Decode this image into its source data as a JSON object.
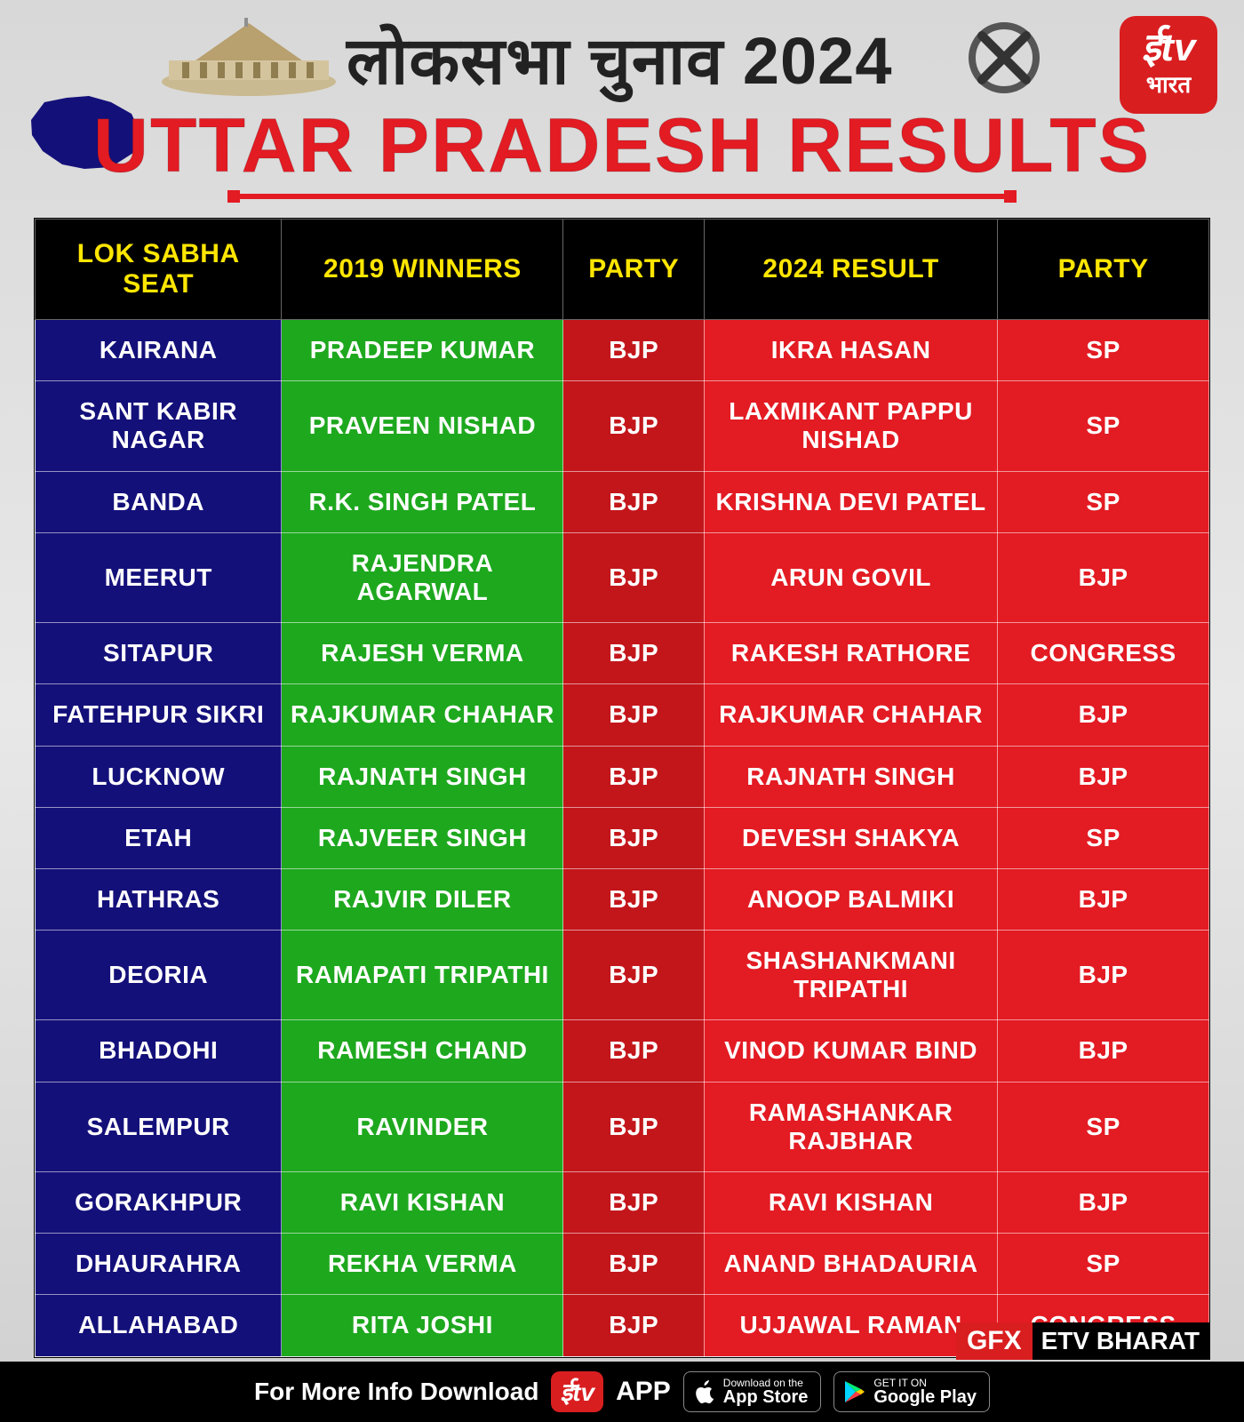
{
  "header": {
    "hindi_title": "लोकसभा चुनाव 2024",
    "main_title": "UTTAR PRADESH RESULTS",
    "logo_top": "ईtv",
    "logo_bottom": "भारत"
  },
  "colors": {
    "header_bg": "#000000",
    "header_fg": "#ffe600",
    "seat_bg": "#14107a",
    "winner2019_bg": "#1ea81e",
    "party2019_bg": "#c3161b",
    "result2024_bg": "#e31b23",
    "party2024_bg": "#e31b23",
    "title_fg": "#e31b23",
    "cell_fg": "#ffffff",
    "page_bg": "#e0e0e0",
    "map_fill": "#14107a"
  },
  "table": {
    "columns": [
      "LOK SABHA SEAT",
      "2019 WINNERS",
      "PARTY",
      "2024 RESULT",
      "PARTY"
    ],
    "col_widths_pct": [
      21,
      24,
      12,
      25,
      18
    ],
    "header_fontsize": 30,
    "cell_fontsize": 28,
    "rows": [
      [
        "KAIRANA",
        "PRADEEP KUMAR",
        "BJP",
        "IKRA HASAN",
        "SP"
      ],
      [
        "SANT KABIR NAGAR",
        "PRAVEEN NISHAD",
        "BJP",
        "LAXMIKANT PAPPU NISHAD",
        "SP"
      ],
      [
        "BANDA",
        "R.K. SINGH PATEL",
        "BJP",
        "KRISHNA DEVI PATEL",
        "SP"
      ],
      [
        "MEERUT",
        "RAJENDRA AGARWAL",
        "BJP",
        "ARUN GOVIL",
        "BJP"
      ],
      [
        "SITAPUR",
        "RAJESH VERMA",
        "BJP",
        "RAKESH RATHORE",
        "CONGRESS"
      ],
      [
        "FATEHPUR SIKRI",
        "RAJKUMAR CHAHAR",
        "BJP",
        "RAJKUMAR CHAHAR",
        "BJP"
      ],
      [
        "LUCKNOW",
        "RAJNATH SINGH",
        "BJP",
        "RAJNATH SINGH",
        "BJP"
      ],
      [
        "ETAH",
        "RAJVEER SINGH",
        "BJP",
        "DEVESH SHAKYA",
        "SP"
      ],
      [
        "HATHRAS",
        "RAJVIR DILER",
        "BJP",
        "ANOOP BALMIKI",
        "BJP"
      ],
      [
        "DEORIA",
        "RAMAPATI TRIPATHI",
        "BJP",
        "SHASHANKMANI TRIPATHI",
        "BJP"
      ],
      [
        "BHADOHI",
        "RAMESH CHAND",
        "BJP",
        "VINOD KUMAR BIND",
        "BJP"
      ],
      [
        "SALEMPUR",
        "RAVINDER",
        "BJP",
        "RAMASHANKAR RAJBHAR",
        "SP"
      ],
      [
        "GORAKHPUR",
        "RAVI KISHAN",
        "BJP",
        "RAVI KISHAN",
        "BJP"
      ],
      [
        "DHAURAHRA",
        "REKHA VERMA",
        "BJP",
        "ANAND BHADAURIA",
        "SP"
      ],
      [
        "ALLAHABAD",
        "RITA JOSHI",
        "BJP",
        "UJJAWAL RAMAN",
        "CONGRESS"
      ]
    ]
  },
  "footer": {
    "text": "For More Info Download",
    "app_pill": "ईtv",
    "app_label": "APP",
    "appstore_small": "Download on the",
    "appstore_big": "App Store",
    "play_small": "GET IT ON",
    "play_big": "Google Play"
  },
  "gfx": {
    "g1": "GFX",
    "g2": "ETV BHARAT"
  }
}
